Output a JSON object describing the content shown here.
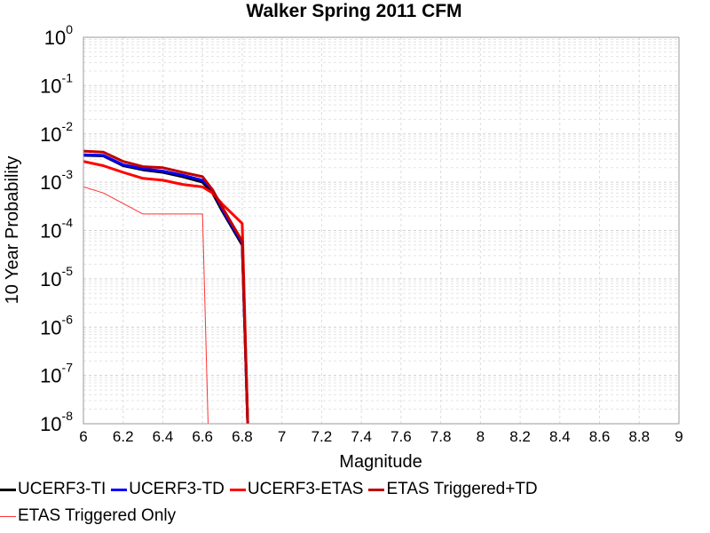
{
  "chart_data": {
    "type": "line",
    "title": "Walker Spring 2011 CFM",
    "xlabel": "Magnitude",
    "ylabel": "10 Year Probability",
    "xlim": [
      6,
      9
    ],
    "ylim": [
      1e-08,
      1
    ],
    "yscale": "log",
    "grid": true,
    "x_ticks": [
      "6",
      "6.2",
      "6.4",
      "6.6",
      "6.8",
      "7",
      "7.2",
      "7.4",
      "7.6",
      "7.8",
      "8",
      "8.2",
      "8.4",
      "8.6",
      "8.8",
      "9"
    ],
    "y_ticks": [
      {
        "base": "10",
        "exp": "0",
        "value": 1
      },
      {
        "base": "10",
        "exp": "-1",
        "value": 0.1
      },
      {
        "base": "10",
        "exp": "-2",
        "value": 0.01
      },
      {
        "base": "10",
        "exp": "-3",
        "value": 0.001
      },
      {
        "base": "10",
        "exp": "-4",
        "value": 0.0001
      },
      {
        "base": "10",
        "exp": "-5",
        "value": 1e-05
      },
      {
        "base": "10",
        "exp": "-6",
        "value": 1e-06
      },
      {
        "base": "10",
        "exp": "-7",
        "value": 1e-07
      },
      {
        "base": "10",
        "exp": "-8",
        "value": 1e-08
      }
    ],
    "legend_position": "bottom",
    "series": [
      {
        "name": "UCERF3-TI",
        "color": "#000000",
        "width": 3,
        "points": [
          [
            6.0,
            0.0036
          ],
          [
            6.1,
            0.0035
          ],
          [
            6.2,
            0.0022
          ],
          [
            6.3,
            0.0018
          ],
          [
            6.4,
            0.0016
          ],
          [
            6.5,
            0.0013
          ],
          [
            6.6,
            0.001
          ],
          [
            6.65,
            0.0006
          ],
          [
            6.7,
            0.00025
          ],
          [
            6.8,
            5e-05
          ],
          [
            6.83,
            5e-09
          ]
        ]
      },
      {
        "name": "UCERF3-TD",
        "color": "#0000ff",
        "width": 3,
        "points": [
          [
            6.0,
            0.0037
          ],
          [
            6.1,
            0.0036
          ],
          [
            6.2,
            0.0023
          ],
          [
            6.3,
            0.0019
          ],
          [
            6.4,
            0.0017
          ],
          [
            6.5,
            0.0014
          ],
          [
            6.6,
            0.0011
          ],
          [
            6.65,
            0.0007
          ],
          [
            6.7,
            0.00027
          ],
          [
            6.8,
            5.5e-05
          ],
          [
            6.83,
            5e-09
          ]
        ]
      },
      {
        "name": "UCERF3-ETAS",
        "color": "#ff0000",
        "width": 3,
        "points": [
          [
            6.0,
            0.0027
          ],
          [
            6.1,
            0.0022
          ],
          [
            6.2,
            0.0016
          ],
          [
            6.3,
            0.0012
          ],
          [
            6.4,
            0.0011
          ],
          [
            6.5,
            0.0009
          ],
          [
            6.6,
            0.0008
          ],
          [
            6.65,
            0.0006
          ],
          [
            6.7,
            0.00035
          ],
          [
            6.8,
            0.00014
          ],
          [
            6.83,
            5e-09
          ]
        ]
      },
      {
        "name": "ETAS Triggered+TD",
        "color": "#c00000",
        "width": 3,
        "points": [
          [
            6.0,
            0.0044
          ],
          [
            6.1,
            0.0042
          ],
          [
            6.2,
            0.0027
          ],
          [
            6.3,
            0.0021
          ],
          [
            6.4,
            0.002
          ],
          [
            6.5,
            0.0016
          ],
          [
            6.6,
            0.0013
          ],
          [
            6.65,
            0.0007
          ],
          [
            6.7,
            0.0003
          ],
          [
            6.8,
            6e-05
          ],
          [
            6.83,
            5e-09
          ]
        ]
      },
      {
        "name": "ETAS Triggered Only",
        "color": "#ff3333",
        "width": 1,
        "points": [
          [
            6.0,
            0.0008
          ],
          [
            6.1,
            0.0006
          ],
          [
            6.3,
            0.00022
          ],
          [
            6.4,
            0.00022
          ],
          [
            6.5,
            0.00022
          ],
          [
            6.6,
            0.00022
          ],
          [
            6.63,
            5e-09
          ]
        ]
      }
    ]
  }
}
